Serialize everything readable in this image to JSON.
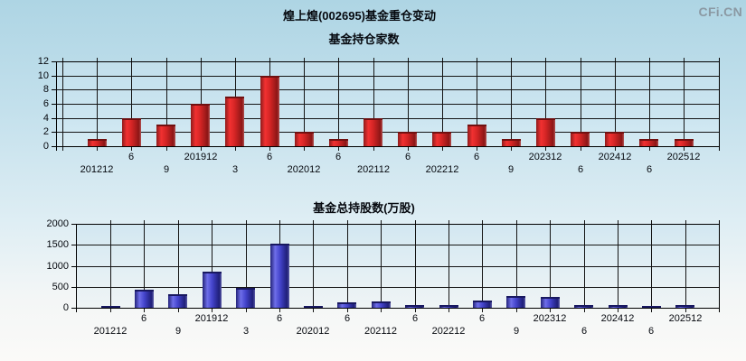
{
  "page": {
    "title": "煌上煌(002695)基金重仓变动",
    "watermark": "CFi.CN"
  },
  "colors": {
    "bar_red": "#e02525",
    "bar_red_dark": "#8f1b1b",
    "bar_blue": "#4545cd",
    "bar_blue_dark": "#23237a",
    "grid": "#151515",
    "label_text": "#06090f",
    "watermark_gray": "#8b99a3",
    "background_top": "#aed5e4",
    "background_bottom": "#fbfaf8"
  },
  "chart_data": [
    {
      "type": "bar",
      "title": "基金持仓家数",
      "categories": [
        "201212",
        "6",
        "9",
        "201912",
        "3",
        "6",
        "202012",
        "6",
        "202112",
        "6",
        "202212",
        "6",
        "9",
        "202312",
        "6",
        "202412",
        "6",
        "202512"
      ],
      "values": [
        1,
        4,
        3,
        6,
        7,
        10,
        2,
        1,
        4,
        2,
        2,
        3,
        1,
        4,
        2,
        2,
        1,
        1
      ],
      "ylim": [
        0,
        12
      ],
      "yticks": [
        0,
        2,
        4,
        6,
        8,
        10,
        12
      ],
      "bar_color": "red",
      "grid": "on",
      "x_label_layout": "staggered-two-rows"
    },
    {
      "type": "bar",
      "title": "基金总持股数(万股)",
      "categories": [
        "201212",
        "6",
        "9",
        "201912",
        "3",
        "6",
        "202012",
        "6",
        "202112",
        "6",
        "202212",
        "6",
        "9",
        "202312",
        "6",
        "202412",
        "6",
        "202512"
      ],
      "values": [
        40,
        440,
        330,
        850,
        470,
        1530,
        15,
        120,
        145,
        65,
        70,
        180,
        290,
        250,
        55,
        55,
        30,
        65
      ],
      "ylim": [
        0,
        2000
      ],
      "yticks": [
        0,
        500,
        1000,
        1500,
        2000
      ],
      "bar_color": "blue",
      "grid": "on",
      "x_label_layout": "staggered-two-rows"
    }
  ]
}
